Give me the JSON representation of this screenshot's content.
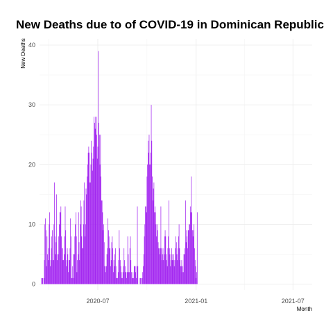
{
  "chart_data": {
    "type": "bar",
    "title": "New Deaths due to of COVID-19 in Dominican Republic",
    "xlabel": "Month",
    "ylabel": "New Deaths",
    "bar_color": "#a020f0",
    "grid": true,
    "ylim": [
      0,
      40
    ],
    "yticks": [
      0,
      10,
      20,
      30,
      40
    ],
    "xlim": [
      "2020-03-14",
      "2021-08-06"
    ],
    "xticks": [
      {
        "date": "2020-07-01",
        "label": "2020-07"
      },
      {
        "date": "2021-01-01",
        "label": "2021-01"
      },
      {
        "date": "2021-07-01",
        "label": "2021-07"
      }
    ],
    "x_start": "2020-03-18",
    "values": [
      1,
      1,
      1,
      0,
      1,
      4,
      10,
      11,
      9,
      3,
      8,
      5,
      4,
      6,
      10,
      12,
      3,
      4,
      6,
      8,
      9,
      4,
      4,
      10,
      17,
      8,
      5,
      7,
      15,
      4,
      5,
      5,
      8,
      10,
      12,
      12,
      13,
      8,
      6,
      6,
      4,
      4,
      5,
      8,
      13,
      9,
      3,
      4,
      6,
      5,
      2,
      4,
      4,
      6,
      11,
      8,
      1,
      1,
      3,
      5,
      1,
      5,
      8,
      10,
      12,
      8,
      2,
      4,
      5,
      12,
      7,
      4,
      10,
      14,
      13,
      8,
      6,
      6,
      10,
      14,
      17,
      8,
      10,
      16,
      15,
      18,
      20,
      22,
      23,
      22,
      17,
      17,
      20,
      24,
      22,
      19,
      21,
      23,
      28,
      27,
      26,
      28,
      28,
      25,
      21,
      23,
      39,
      27,
      25,
      20,
      25,
      18,
      14,
      14,
      12,
      9,
      10,
      7,
      3,
      3,
      2,
      3,
      5,
      6,
      11,
      9,
      8,
      6,
      6,
      3,
      4,
      7,
      8,
      6,
      2,
      4,
      3,
      5,
      6,
      3,
      1,
      1,
      1,
      2,
      4,
      9,
      6,
      4,
      3,
      2,
      1,
      1,
      2,
      3,
      6,
      4,
      3,
      2,
      2,
      1,
      2,
      8,
      5,
      2,
      2,
      6,
      8,
      4,
      2,
      1,
      1,
      2,
      1,
      3,
      3,
      3,
      2,
      1,
      3,
      13,
      3,
      0,
      0,
      0,
      1,
      1,
      0,
      1,
      1,
      2,
      3,
      5,
      8,
      10,
      13,
      13,
      12,
      18,
      20,
      24,
      22,
      25,
      20,
      20,
      22,
      30,
      24,
      18,
      14,
      16,
      17,
      12,
      13,
      12,
      10,
      8,
      10,
      9,
      7,
      6,
      6,
      5,
      6,
      13,
      6,
      4,
      5,
      6,
      4,
      5,
      8,
      9,
      8,
      5,
      4,
      3,
      6,
      8,
      14,
      6,
      5,
      3,
      4,
      6,
      5,
      4,
      4,
      5,
      3,
      4,
      6,
      8,
      7,
      5,
      4,
      6,
      8,
      10,
      6,
      4,
      3,
      3,
      4,
      2,
      3,
      2,
      5,
      5,
      6,
      14,
      7,
      9,
      8,
      6,
      9,
      9,
      10,
      10,
      13,
      12,
      18,
      12,
      9,
      8,
      9,
      10,
      6,
      4,
      3,
      1,
      2,
      12
    ]
  }
}
